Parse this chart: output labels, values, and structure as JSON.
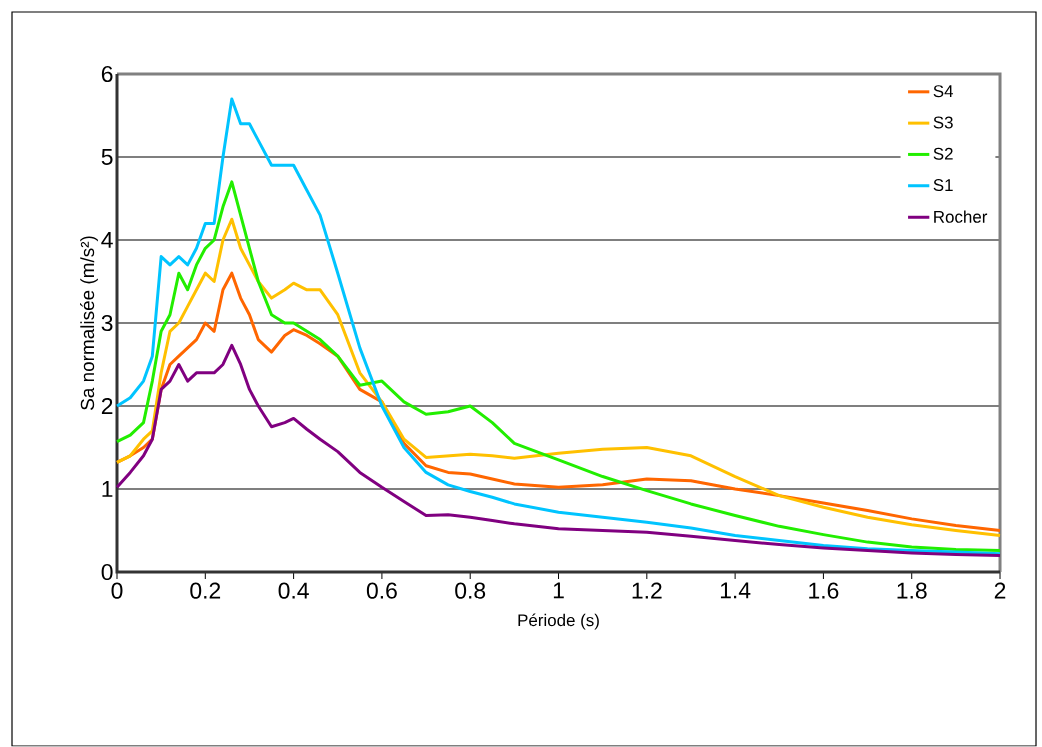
{
  "chart_data": {
    "type": "line",
    "xlabel": "Période (s)",
    "ylabel": "Sa normalisée (m/s²)",
    "x": [
      0,
      0.03,
      0.06,
      0.08,
      0.1,
      0.12,
      0.14,
      0.16,
      0.18,
      0.2,
      0.22,
      0.24,
      0.26,
      0.28,
      0.3,
      0.32,
      0.35,
      0.38,
      0.4,
      0.43,
      0.46,
      0.5,
      0.55,
      0.6,
      0.65,
      0.7,
      0.75,
      0.8,
      0.85,
      0.9,
      1.0,
      1.1,
      1.2,
      1.3,
      1.4,
      1.5,
      1.6,
      1.7,
      1.8,
      1.9,
      2.0
    ],
    "series": [
      {
        "name": "S4",
        "color": "#ff6600",
        "values": [
          1.32,
          1.4,
          1.5,
          1.6,
          2.2,
          2.5,
          2.6,
          2.7,
          2.8,
          3.0,
          2.9,
          3.4,
          3.6,
          3.3,
          3.1,
          2.8,
          2.65,
          2.85,
          2.92,
          2.85,
          2.75,
          2.6,
          2.2,
          2.05,
          1.55,
          1.28,
          1.2,
          1.18,
          1.12,
          1.06,
          1.02,
          1.05,
          1.12,
          1.1,
          1.0,
          0.92,
          0.83,
          0.74,
          0.64,
          0.56,
          0.5
        ]
      },
      {
        "name": "S3",
        "color": "#ffc000",
        "values": [
          1.32,
          1.4,
          1.6,
          1.7,
          2.4,
          2.9,
          3.0,
          3.2,
          3.4,
          3.6,
          3.5,
          4.0,
          4.25,
          3.9,
          3.7,
          3.5,
          3.3,
          3.4,
          3.48,
          3.4,
          3.4,
          3.1,
          2.4,
          2.05,
          1.6,
          1.38,
          1.4,
          1.42,
          1.4,
          1.37,
          1.43,
          1.48,
          1.5,
          1.4,
          1.15,
          0.92,
          0.78,
          0.66,
          0.57,
          0.5,
          0.44
        ]
      },
      {
        "name": "S2",
        "color": "#22ee00",
        "values": [
          1.57,
          1.65,
          1.8,
          2.3,
          2.9,
          3.1,
          3.6,
          3.4,
          3.7,
          3.9,
          4.0,
          4.4,
          4.7,
          4.3,
          3.9,
          3.5,
          3.1,
          3.0,
          3.0,
          2.9,
          2.8,
          2.6,
          2.25,
          2.3,
          2.05,
          1.9,
          1.93,
          2.0,
          1.8,
          1.55,
          1.35,
          1.15,
          0.98,
          0.82,
          0.68,
          0.55,
          0.45,
          0.36,
          0.3,
          0.27,
          0.26
        ]
      },
      {
        "name": "S1",
        "color": "#00c4ff",
        "values": [
          2.0,
          2.1,
          2.3,
          2.6,
          3.8,
          3.7,
          3.8,
          3.7,
          3.9,
          4.2,
          4.2,
          5.0,
          5.7,
          5.4,
          5.4,
          5.2,
          4.9,
          4.9,
          4.9,
          4.6,
          4.3,
          3.6,
          2.7,
          2.0,
          1.5,
          1.2,
          1.05,
          0.97,
          0.9,
          0.82,
          0.72,
          0.66,
          0.6,
          0.53,
          0.44,
          0.38,
          0.32,
          0.28,
          0.26,
          0.24,
          0.22
        ]
      },
      {
        "name": "Rocher",
        "color": "#800080",
        "values": [
          1.02,
          1.2,
          1.4,
          1.6,
          2.2,
          2.3,
          2.5,
          2.3,
          2.4,
          2.4,
          2.4,
          2.5,
          2.73,
          2.5,
          2.2,
          2.0,
          1.75,
          1.8,
          1.85,
          1.72,
          1.6,
          1.45,
          1.2,
          1.02,
          0.85,
          0.68,
          0.69,
          0.66,
          0.62,
          0.58,
          0.52,
          0.5,
          0.48,
          0.43,
          0.38,
          0.33,
          0.29,
          0.26,
          0.23,
          0.21,
          0.2
        ]
      }
    ],
    "xlim": [
      0,
      2
    ],
    "xticks": [
      0,
      0.2,
      0.4,
      0.6,
      0.8,
      1,
      1.2,
      1.4,
      1.6,
      1.8,
      2
    ],
    "ylim": [
      0,
      6
    ],
    "yticks": [
      0,
      1,
      2,
      3,
      4,
      5,
      6
    ],
    "grid": "y",
    "legend": "top right",
    "marker": "none",
    "line_style": "solid"
  }
}
